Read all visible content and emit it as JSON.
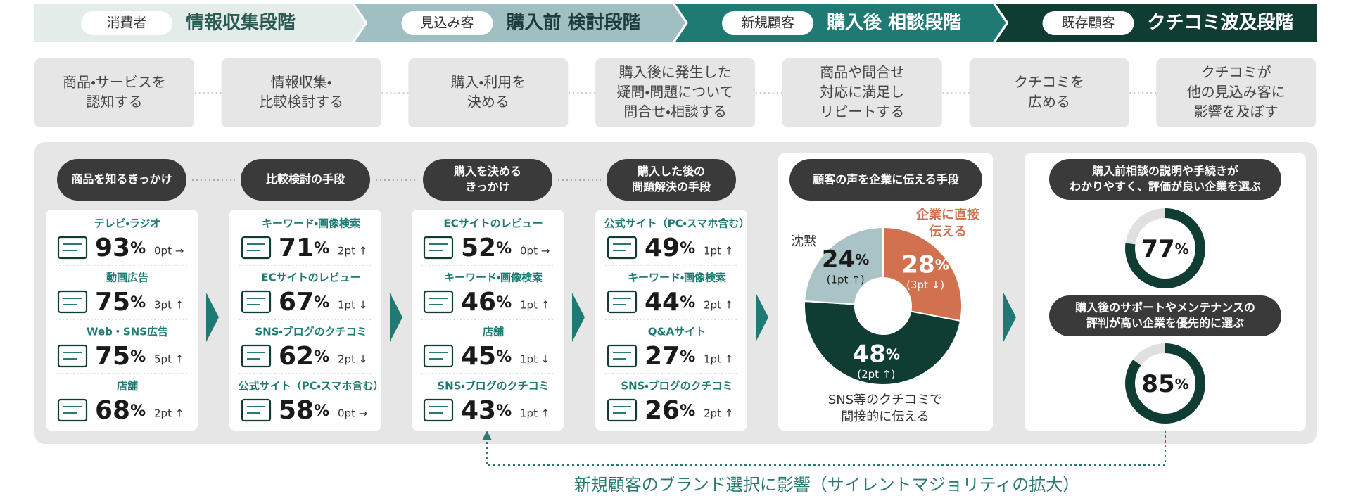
{
  "stages": [
    {
      "tag": "消費者",
      "title": "情報収集段階"
    },
    {
      "tag": "見込み客",
      "title": "購入前 検討段階"
    },
    {
      "tag": "新規顧客",
      "title": "購入後 相談段階"
    },
    {
      "tag": "既存顧客",
      "title": "クチコミ波及段階"
    }
  ],
  "steps": [
    [
      "商品・サービスを",
      "認知する"
    ],
    [
      "情報収集・",
      "比較検討する"
    ],
    [
      "購入・利用を",
      "決める"
    ],
    [
      "購入後に発生した",
      "疑問・問題について",
      "問合せ・相談する"
    ],
    [
      "商品や問合せ",
      "対応に満足し",
      "リピートする"
    ],
    [
      "クチコミを",
      "広める"
    ],
    [
      "クチコミが",
      "他の見込み客に",
      "影響を及ぼす"
    ]
  ],
  "unit": "%",
  "columns": [
    {
      "header": [
        "商品を知るきっかけ"
      ],
      "items": [
        {
          "label": "テレビ・ラジオ",
          "value": 93,
          "change": "0pt →"
        },
        {
          "label": "動画広告",
          "value": 75,
          "change": "3pt ↑"
        },
        {
          "label": "Web・SNS広告",
          "value": 75,
          "change": "5pt ↑"
        },
        {
          "label": "店舗",
          "value": 68,
          "change": "2pt ↑"
        }
      ]
    },
    {
      "header": [
        "比較検討の手段"
      ],
      "items": [
        {
          "label": "キーワード・画像検索",
          "value": 71,
          "change": "2pt ↑"
        },
        {
          "label": "ECサイトのレビュー",
          "value": 67,
          "change": "1pt ↓"
        },
        {
          "label": "SNS・ブログのクチコミ",
          "value": 62,
          "change": "2pt ↓"
        },
        {
          "label": "公式サイト（PC・スマホ含む）",
          "value": 58,
          "change": "0pt →"
        }
      ]
    },
    {
      "header": [
        "購入を決める",
        "きっかけ"
      ],
      "items": [
        {
          "label": "ECサイトのレビュー",
          "value": 52,
          "change": "0pt →"
        },
        {
          "label": "キーワード・画像検索",
          "value": 46,
          "change": "1pt ↑"
        },
        {
          "label": "店舗",
          "value": 45,
          "change": "1pt ↓"
        },
        {
          "label": "SNS・ブログのクチコミ",
          "value": 43,
          "change": "1pt ↑"
        }
      ]
    },
    {
      "header": [
        "購入した後の",
        "問題解決の手段"
      ],
      "items": [
        {
          "label": "公式サイト（PC・スマホ含む）",
          "value": 49,
          "change": "1pt ↑"
        },
        {
          "label": "キーワード・画像検索",
          "value": 44,
          "change": "2pt ↑"
        },
        {
          "label": "Q&Aサイト",
          "value": 27,
          "change": "1pt ↑"
        },
        {
          "label": "SNS・ブログのクチコミ",
          "value": 26,
          "change": "2pt ↑"
        }
      ]
    }
  ],
  "voice": {
    "header": "顧客の声を企業に伝える手段",
    "slices": [
      {
        "label": [
          "企業に直接",
          "伝える"
        ],
        "value": 28,
        "change": "(3pt ↓)"
      },
      {
        "label": [
          "SNS等のクチコミで",
          "間接的に伝える"
        ],
        "value": 48,
        "change": "(2pt ↑)"
      },
      {
        "label": [
          "沈黙"
        ],
        "value": 24,
        "change": "(1pt ↑)"
      }
    ]
  },
  "ratings": [
    {
      "text": [
        "購入前相談の説明や手続きが",
        "わかりやすく、評価が良い企業を選ぶ"
      ],
      "value": 77
    },
    {
      "text": [
        "購入後のサポートやメンテナンスの",
        "評判が高い企業を優先的に選ぶ"
      ],
      "value": 85
    }
  ],
  "footer": "新規顧客のブランド選択に影響（サイレントマジョリティの拡大）"
}
